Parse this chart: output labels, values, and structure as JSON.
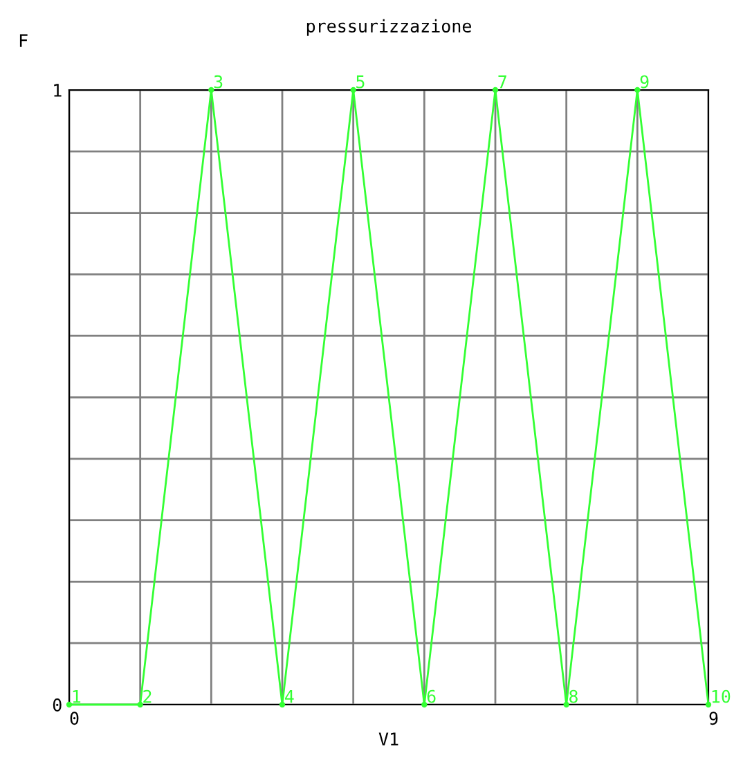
{
  "chart_data": {
    "type": "line",
    "title": "pressurizzazione",
    "xlabel": "V1",
    "ylabel": "F",
    "x": [
      0,
      1,
      2,
      3,
      4,
      5,
      6,
      7,
      8,
      9
    ],
    "series": [
      {
        "color": "#33ff33",
        "values": [
          0,
          0,
          1,
          0,
          1,
          0,
          1,
          0,
          1,
          0
        ]
      }
    ],
    "annotations": [
      {
        "text": "1",
        "x": 0,
        "y": 0
      },
      {
        "text": "2",
        "x": 1,
        "y": 0
      },
      {
        "text": "3",
        "x": 2,
        "y": 1
      },
      {
        "text": "4",
        "x": 3,
        "y": 0
      },
      {
        "text": "5",
        "x": 4,
        "y": 1
      },
      {
        "text": "6",
        "x": 5,
        "y": 0
      },
      {
        "text": "7",
        "x": 6,
        "y": 1
      },
      {
        "text": "8",
        "x": 7,
        "y": 0
      },
      {
        "text": "9",
        "x": 8,
        "y": 1
      },
      {
        "text": "10",
        "x": 9,
        "y": 0
      }
    ],
    "xlim": [
      0,
      9
    ],
    "ylim": [
      0,
      1
    ],
    "xticks": [
      0,
      {
        "value": 1,
        "label": null
      },
      {
        "value": 2,
        "label": null
      },
      {
        "value": 3,
        "label": null
      },
      {
        "value": 4,
        "label": null
      },
      {
        "value": 5,
        "label": null
      },
      {
        "value": 6,
        "label": null
      },
      {
        "value": 7,
        "label": null
      },
      {
        "value": 8,
        "label": null
      },
      9
    ],
    "yticks": [
      0,
      {
        "value": 0.1,
        "label": null
      },
      {
        "value": 0.2,
        "label": null
      },
      {
        "value": 0.3,
        "label": null
      },
      {
        "value": 0.4,
        "label": null
      },
      {
        "value": 0.5,
        "label": null
      },
      {
        "value": 0.6,
        "label": null
      },
      {
        "value": 0.7,
        "label": null
      },
      {
        "value": 0.8,
        "label": null
      },
      {
        "value": 0.9,
        "label": null
      },
      1
    ],
    "grid": true,
    "marker": "circle",
    "line_style": "solid",
    "legend": false
  }
}
